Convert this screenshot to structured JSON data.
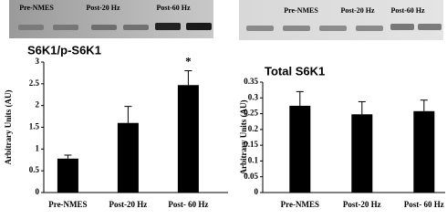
{
  "chart_data": [
    {
      "type": "bar",
      "title": "S6K1/p-S6K1",
      "y_label": "Arbitrary Units (AU)",
      "blot_labels": [
        "Pre-NMES",
        "Post-20 Hz",
        "Post-60 Hz"
      ],
      "categories": [
        "Pre-NMES",
        "Post-20 Hz",
        "Post- 60 Hz"
      ],
      "values": [
        0.78,
        1.6,
        2.47
      ],
      "errors": [
        0.08,
        0.38,
        0.33
      ],
      "annotations": [
        null,
        null,
        "*"
      ],
      "color": "#000000",
      "ylim": [
        0,
        3
      ],
      "yticks": [
        0,
        0.5,
        1,
        1.5,
        2,
        2.5,
        3
      ],
      "grid": false
    },
    {
      "type": "bar",
      "title": "Total S6K1",
      "y_label": "Arbitrary Units (AU)",
      "blot_labels": [
        "Pre-NMES",
        "Post-20 Hz",
        "Post-60 Hz"
      ],
      "categories": [
        "Pre-NMES",
        "Post-20 Hz",
        "Post- 60 Hz"
      ],
      "values": [
        0.275,
        0.248,
        0.258
      ],
      "errors": [
        0.045,
        0.04,
        0.035
      ],
      "annotations": [
        null,
        null,
        null
      ],
      "color": "#000000",
      "ylim": [
        0,
        0.35
      ],
      "yticks": [
        0,
        0.05,
        0.1,
        0.15,
        0.2,
        0.25,
        0.3,
        0.35
      ],
      "grid": false
    }
  ]
}
